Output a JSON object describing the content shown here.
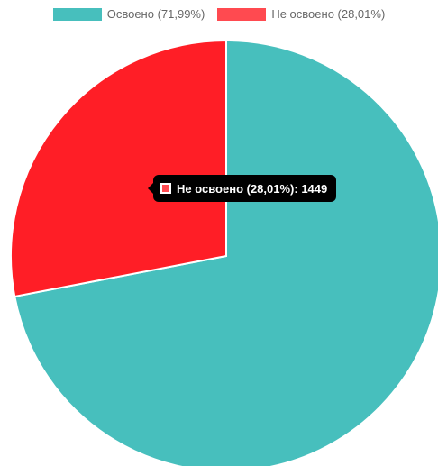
{
  "chart_data": {
    "type": "pie",
    "slices": [
      {
        "label": "Освоено (71,99%)",
        "value": 3724,
        "percent": 71.99,
        "color": "#47bfbd"
      },
      {
        "label": "Не освоено (28,01%)",
        "value": 1449,
        "percent": 28.01,
        "color": "#ff1e26"
      }
    ],
    "legend_position": "top",
    "tooltip": {
      "text": "Не освоено (28,01%): 1449",
      "swatch_color": "#ff4a50"
    }
  }
}
